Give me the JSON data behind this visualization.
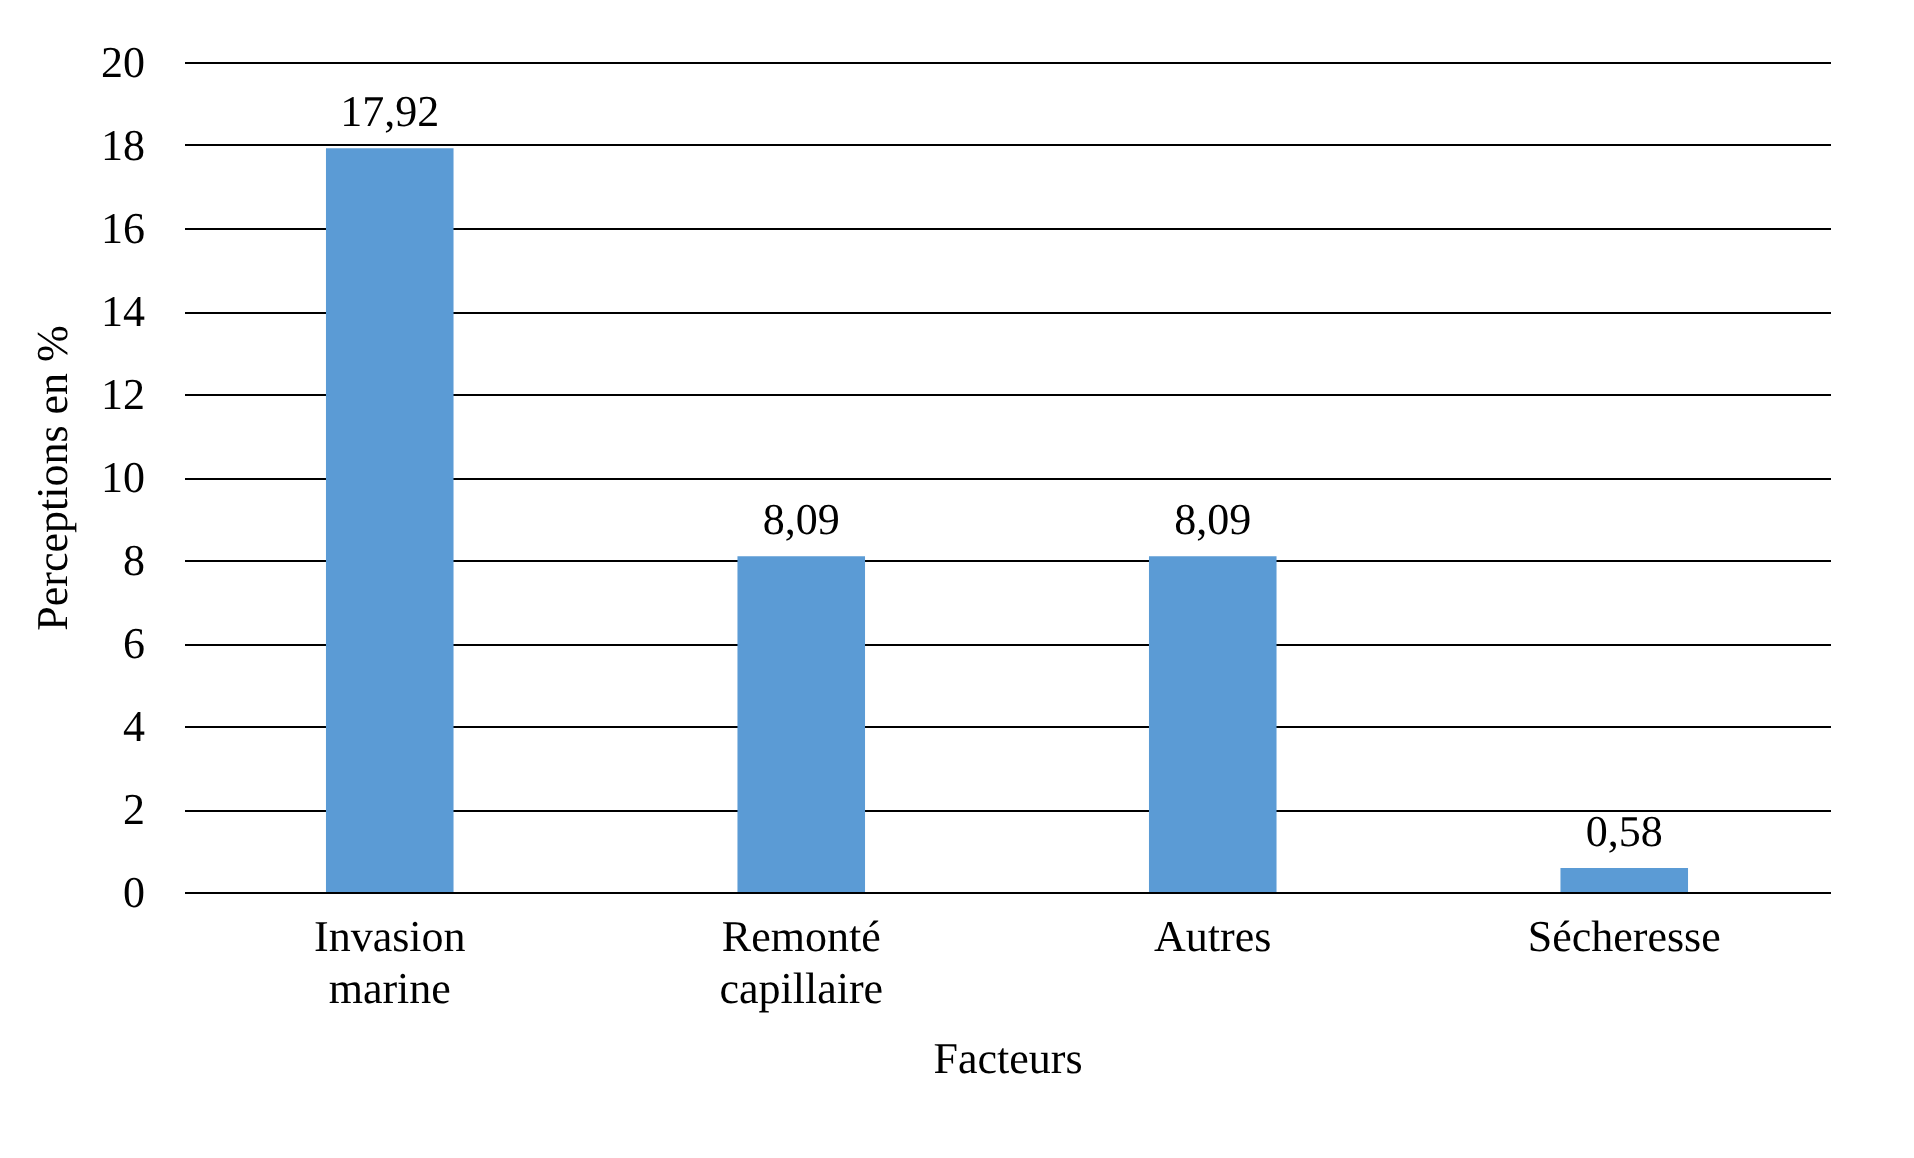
{
  "chart_data": {
    "type": "bar",
    "xlabel": "Facteurs",
    "ylabel": "Perceptions en %",
    "categories": [
      "Invasion marine",
      "Remonté capillaire",
      "Autres",
      "Sécheresse"
    ],
    "values": [
      17.92,
      8.09,
      8.09,
      0.58
    ],
    "value_labels": [
      "17,92",
      "8,09",
      "8,09",
      "0,58"
    ],
    "color": "#5b9bd5",
    "ylim": [
      0,
      20
    ],
    "yticks": [
      0,
      2,
      4,
      6,
      8,
      10,
      12,
      14,
      16,
      18,
      20
    ],
    "grid": "y"
  }
}
